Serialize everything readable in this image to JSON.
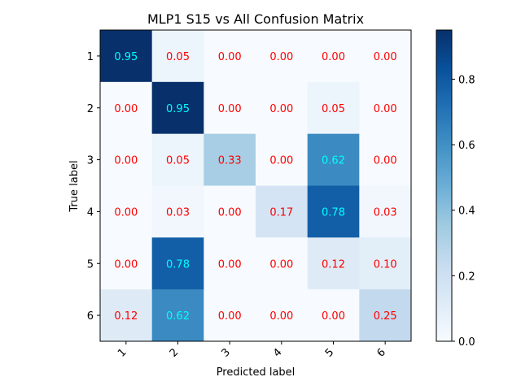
{
  "chart_data": {
    "type": "heatmap",
    "title": "MLP1 S15 vs All Confusion Matrix",
    "xlabel": "Predicted label",
    "ylabel": "True label",
    "x_categories": [
      "1",
      "2",
      "3",
      "4",
      "5",
      "6"
    ],
    "y_categories": [
      "1",
      "2",
      "3",
      "4",
      "5",
      "6"
    ],
    "values": [
      [
        0.95,
        0.05,
        0.0,
        0.0,
        0.0,
        0.0
      ],
      [
        0.0,
        0.95,
        0.0,
        0.0,
        0.05,
        0.0
      ],
      [
        0.0,
        0.05,
        0.33,
        0.0,
        0.62,
        0.0
      ],
      [
        0.0,
        0.03,
        0.0,
        0.17,
        0.78,
        0.03
      ],
      [
        0.0,
        0.78,
        0.0,
        0.0,
        0.12,
        0.1
      ],
      [
        0.12,
        0.62,
        0.0,
        0.0,
        0.0,
        0.25
      ]
    ],
    "value_range": [
      0,
      0.95
    ],
    "colormap": "Blues",
    "annotation_colors": {
      "high": "#00ffff",
      "low": "#ff0000"
    },
    "colorbar": {
      "ticks": [
        0.0,
        0.2,
        0.4,
        0.6,
        0.8
      ],
      "tick_labels": [
        "0.0",
        "0.2",
        "0.4",
        "0.6",
        "0.8"
      ]
    },
    "grid": false
  }
}
